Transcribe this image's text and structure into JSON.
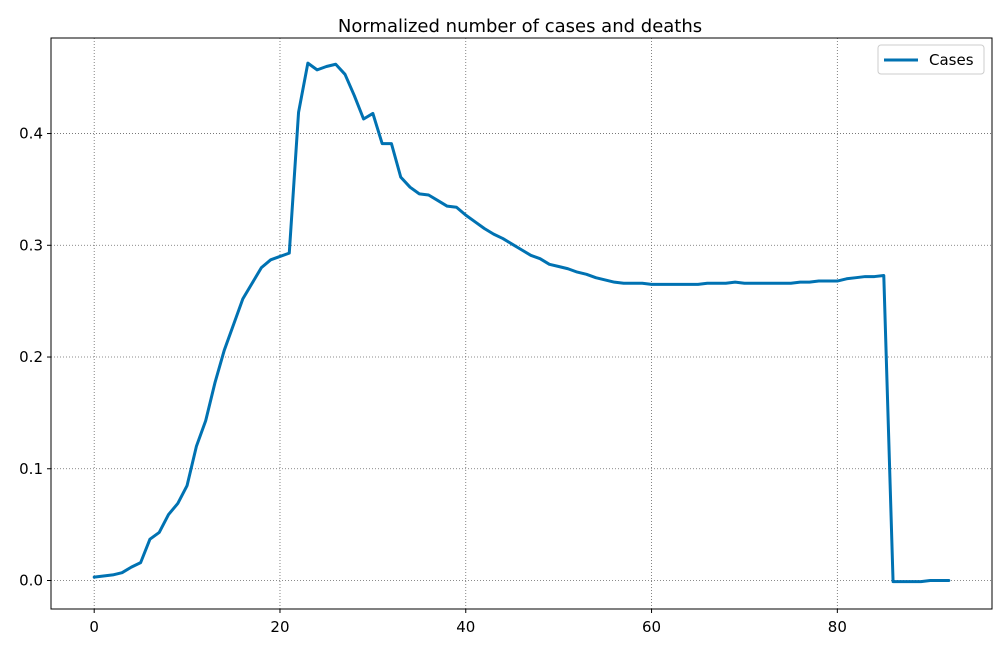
{
  "chart_data": {
    "type": "line",
    "title": "Normalized number of cases and deaths",
    "xlabel": "",
    "ylabel": "",
    "xlim": [
      -4.65,
      96.65
    ],
    "ylim": [
      -0.0255,
      0.4855
    ],
    "xticks": [
      0,
      20,
      40,
      60,
      80
    ],
    "yticks": [
      0.0,
      0.1,
      0.2,
      0.3,
      0.4
    ],
    "ytick_labels": [
      "0.0",
      "0.1",
      "0.2",
      "0.3",
      "0.4"
    ],
    "grid": true,
    "legend_position": "top-right",
    "series": [
      {
        "name": "Cases",
        "color": "#0072b2",
        "x": [
          0,
          1,
          2,
          3,
          4,
          5,
          6,
          7,
          8,
          9,
          10,
          11,
          12,
          13,
          14,
          15,
          16,
          17,
          18,
          19,
          20,
          21,
          22,
          23,
          24,
          25,
          26,
          27,
          28,
          29,
          30,
          31,
          32,
          33,
          34,
          35,
          36,
          37,
          38,
          39,
          40,
          41,
          42,
          43,
          44,
          45,
          46,
          47,
          48,
          49,
          50,
          51,
          52,
          53,
          54,
          55,
          56,
          57,
          58,
          59,
          60,
          61,
          62,
          63,
          64,
          65,
          66,
          67,
          68,
          69,
          70,
          71,
          72,
          73,
          74,
          75,
          76,
          77,
          78,
          79,
          80,
          81,
          82,
          83,
          84,
          85,
          86,
          87,
          88,
          89,
          90,
          91,
          92
        ],
        "y": [
          0.003,
          0.004,
          0.005,
          0.007,
          0.012,
          0.016,
          0.037,
          0.043,
          0.059,
          0.069,
          0.085,
          0.12,
          0.143,
          0.177,
          0.206,
          0.229,
          0.252,
          0.266,
          0.28,
          0.287,
          0.29,
          0.293,
          0.419,
          0.463,
          0.457,
          0.46,
          0.462,
          0.453,
          0.434,
          0.413,
          0.418,
          0.391,
          0.391,
          0.361,
          0.352,
          0.346,
          0.345,
          0.34,
          0.335,
          0.334,
          0.327,
          0.321,
          0.315,
          0.31,
          0.306,
          0.301,
          0.296,
          0.291,
          0.288,
          0.283,
          0.281,
          0.279,
          0.276,
          0.274,
          0.271,
          0.269,
          0.267,
          0.266,
          0.266,
          0.266,
          0.265,
          0.265,
          0.265,
          0.265,
          0.265,
          0.265,
          0.266,
          0.266,
          0.266,
          0.267,
          0.266,
          0.266,
          0.266,
          0.266,
          0.266,
          0.266,
          0.267,
          0.267,
          0.268,
          0.268,
          0.268,
          0.27,
          0.271,
          0.272,
          0.272,
          0.273,
          -0.001,
          -0.001,
          -0.001,
          -0.001,
          0.0,
          0.0,
          0.0
        ]
      }
    ]
  }
}
